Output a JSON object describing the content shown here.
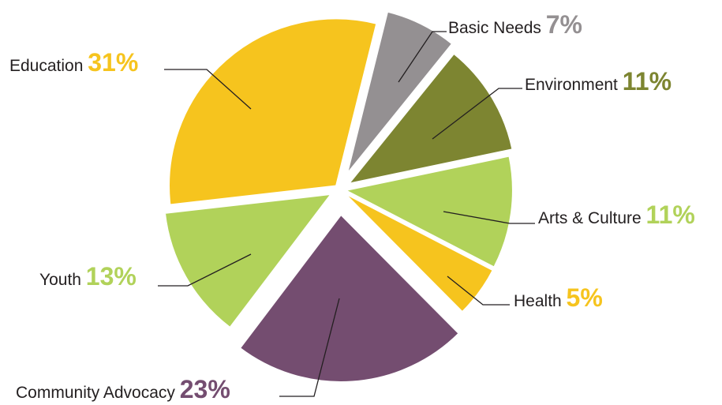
{
  "chart_data": {
    "type": "pie",
    "title": "",
    "slices": [
      {
        "label": "Basic Needs",
        "value": 7,
        "value_text": "7%",
        "color": "#949092",
        "label_color": "#949092"
      },
      {
        "label": "Environment",
        "value": 11,
        "value_text": "11%",
        "color": "#7d8531",
        "label_color": "#7d8531"
      },
      {
        "label": "Arts & Culture",
        "value": 11,
        "value_text": "11%",
        "color": "#b1d25a",
        "label_color": "#b1d25a"
      },
      {
        "label": "Health",
        "value": 5,
        "value_text": "5%",
        "color": "#f6c41e",
        "label_color": "#f6c41e"
      },
      {
        "label": "Community Advocacy",
        "value": 23,
        "value_text": "23%",
        "color": "#744d70",
        "label_color": "#744d70"
      },
      {
        "label": "Youth",
        "value": 13,
        "value_text": "13%",
        "color": "#b1d25a",
        "label_color": "#b1d25a"
      },
      {
        "label": "Education",
        "value": 31,
        "value_text": "31%",
        "color": "#f6c41e",
        "label_color": "#f6c41e"
      }
    ]
  }
}
